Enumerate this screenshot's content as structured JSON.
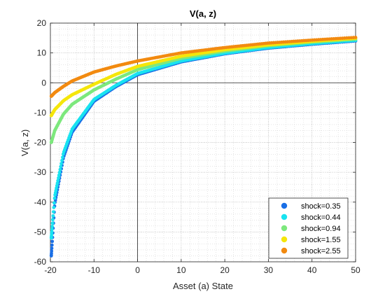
{
  "chart_data": {
    "type": "scatter",
    "title": "V(a, z)",
    "xlabel": "Asset (a) State",
    "ylabel": "V(a, z)",
    "xlim": [
      -20,
      50
    ],
    "ylim": [
      -60,
      20
    ],
    "xticks": [
      -20,
      -10,
      0,
      10,
      20,
      30,
      40,
      50
    ],
    "yticks": [
      -60,
      -50,
      -40,
      -30,
      -20,
      -10,
      0,
      10,
      20
    ],
    "grid": "on",
    "minor_grid": "on",
    "legend_position": "bottom-right",
    "x_start": -19.8,
    "x_end": 50,
    "series": [
      {
        "name": "shock=0.35",
        "color": "#1a6fe6",
        "values_at": {
          "x": [
            -19.8,
            -19,
            -17,
            -15,
            -10,
            -5,
            0,
            10,
            20,
            30,
            40,
            50
          ],
          "y": [
            -58,
            -40.5,
            -25,
            -16.5,
            -6.2,
            -1.3,
            2.7,
            7.0,
            9.7,
            11.6,
            12.9,
            14.0
          ]
        }
      },
      {
        "name": "shock=0.44",
        "color": "#19e3f0",
        "values_at": {
          "x": [
            -19.8,
            -19,
            -17,
            -15,
            -10,
            -5,
            0,
            10,
            20,
            30,
            40,
            50
          ],
          "y": [
            -52,
            -38,
            -23.5,
            -15.5,
            -5.6,
            -0.9,
            3.1,
            7.3,
            9.9,
            11.8,
            13.1,
            14.2
          ]
        }
      },
      {
        "name": "shock=0.94",
        "color": "#7de87d",
        "values_at": {
          "x": [
            -19.8,
            -19,
            -17,
            -15,
            -10,
            -5,
            0,
            10,
            20,
            30,
            40,
            50
          ],
          "y": [
            -20,
            -16,
            -10.5,
            -7.2,
            -2.4,
            1.2,
            4.4,
            8.2,
            10.6,
            12.4,
            13.6,
            14.6
          ]
        }
      },
      {
        "name": "shock=1.55",
        "color": "#f5e60a",
        "values_at": {
          "x": [
            -19.8,
            -19,
            -17,
            -15,
            -10,
            -5,
            0,
            10,
            20,
            30,
            40,
            50
          ],
          "y": [
            -11,
            -9,
            -6,
            -4,
            -0.5,
            2.8,
            5.5,
            8.9,
            11.1,
            12.7,
            13.9,
            14.9
          ]
        }
      },
      {
        "name": "shock=2.55",
        "color": "#f28a10",
        "values_at": {
          "x": [
            -19.8,
            -19,
            -17,
            -15,
            -10,
            -5,
            0,
            10,
            20,
            30,
            40,
            50
          ],
          "y": [
            -4.5,
            -3.3,
            -1.2,
            0.6,
            3.6,
            5.6,
            7.3,
            10.0,
            11.8,
            13.3,
            14.3,
            15.2
          ]
        }
      }
    ]
  }
}
